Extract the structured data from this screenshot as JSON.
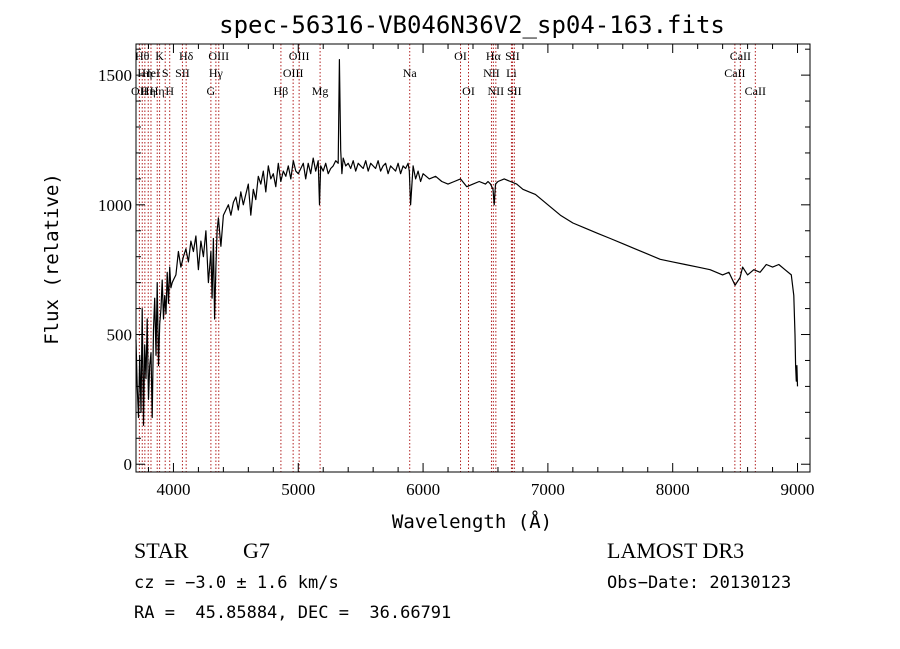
{
  "chart_data": {
    "type": "line",
    "title": "spec-56316-VB046N36V2_sp04-163.fits",
    "xlabel": "Wavelength (Å)",
    "ylabel": "Flux (relative)",
    "xlim": [
      3700,
      9100
    ],
    "ylim": [
      -30,
      1620
    ],
    "xticks": [
      4000,
      5000,
      6000,
      7000,
      8000,
      9000
    ],
    "yticks": [
      0,
      500,
      1000,
      1500
    ],
    "xtick_labels": [
      "4000",
      "5000",
      "6000",
      "7000",
      "8000",
      "9000"
    ],
    "ytick_labels": [
      "0",
      "500",
      "1000",
      "1500"
    ],
    "series": [
      {
        "name": "flux",
        "x": [
          3700,
          3710,
          3720,
          3730,
          3740,
          3750,
          3760,
          3770,
          3780,
          3790,
          3800,
          3810,
          3820,
          3830,
          3840,
          3850,
          3860,
          3870,
          3880,
          3890,
          3900,
          3910,
          3920,
          3930,
          3940,
          3950,
          3960,
          3970,
          3980,
          3990,
          4000,
          4020,
          4040,
          4060,
          4080,
          4100,
          4120,
          4140,
          4160,
          4180,
          4200,
          4220,
          4240,
          4260,
          4280,
          4300,
          4310,
          4320,
          4330,
          4340,
          4350,
          4360,
          4380,
          4400,
          4420,
          4440,
          4460,
          4480,
          4500,
          4520,
          4540,
          4560,
          4580,
          4600,
          4620,
          4640,
          4660,
          4680,
          4700,
          4720,
          4740,
          4760,
          4780,
          4800,
          4820,
          4840,
          4860,
          4880,
          4900,
          4920,
          4940,
          4960,
          4980,
          5000,
          5020,
          5040,
          5060,
          5080,
          5100,
          5120,
          5140,
          5160,
          5170,
          5180,
          5200,
          5220,
          5240,
          5260,
          5280,
          5300,
          5320,
          5330,
          5340,
          5350,
          5360,
          5380,
          5400,
          5420,
          5440,
          5460,
          5480,
          5500,
          5520,
          5540,
          5560,
          5580,
          5600,
          5620,
          5640,
          5660,
          5680,
          5700,
          5720,
          5740,
          5760,
          5780,
          5800,
          5820,
          5840,
          5860,
          5880,
          5890,
          5900,
          5920,
          5940,
          5960,
          5980,
          6000,
          6050,
          6100,
          6150,
          6200,
          6250,
          6300,
          6350,
          6400,
          6450,
          6500,
          6520,
          6540,
          6560,
          6570,
          6580,
          6600,
          6650,
          6700,
          6750,
          6800,
          6850,
          6900,
          6950,
          7000,
          7100,
          7200,
          7300,
          7400,
          7500,
          7600,
          7700,
          7800,
          7900,
          8000,
          8100,
          8200,
          8300,
          8400,
          8450,
          8500,
          8540,
          8560,
          8600,
          8650,
          8700,
          8750,
          8800,
          8850,
          8900,
          8950,
          8970,
          8980,
          8985,
          8990,
          8995,
          9000
        ],
        "y": [
          480,
          300,
          180,
          420,
          200,
          600,
          150,
          460,
          330,
          560,
          250,
          380,
          430,
          180,
          520,
          640,
          420,
          700,
          380,
          540,
          600,
          710,
          560,
          650,
          580,
          740,
          620,
          760,
          680,
          700,
          710,
          730,
          820,
          760,
          800,
          830,
          780,
          860,
          820,
          880,
          750,
          860,
          800,
          900,
          700,
          820,
          640,
          870,
          560,
          760,
          900,
          950,
          840,
          960,
          980,
          1000,
          960,
          1010,
          1030,
          980,
          1050,
          1000,
          1040,
          1080,
          960,
          1060,
          1020,
          1110,
          1080,
          1130,
          1050,
          1150,
          1100,
          1120,
          1070,
          1160,
          1090,
          1130,
          1110,
          1150,
          1100,
          1170,
          1130,
          1120,
          1140,
          1160,
          1100,
          1160,
          1120,
          1180,
          1130,
          1170,
          1000,
          1150,
          1130,
          1160,
          1120,
          1140,
          1150,
          1170,
          1160,
          1560,
          1210,
          1120,
          1180,
          1150,
          1160,
          1140,
          1170,
          1130,
          1160,
          1150,
          1140,
          1170,
          1130,
          1160,
          1150,
          1140,
          1170,
          1130,
          1150,
          1160,
          1120,
          1150,
          1140,
          1130,
          1160,
          1120,
          1150,
          1140,
          1160,
          1130,
          1000,
          1150,
          1100,
          1130,
          1090,
          1120,
          1100,
          1110,
          1090,
          1080,
          1090,
          1100,
          1070,
          1080,
          1090,
          1080,
          1090,
          1080,
          1060,
          1000,
          1080,
          1090,
          1100,
          1090,
          1080,
          1060,
          1050,
          1040,
          1020,
          1000,
          960,
          930,
          910,
          890,
          870,
          850,
          830,
          810,
          790,
          780,
          770,
          760,
          750,
          730,
          740,
          690,
          720,
          760,
          730,
          750,
          740,
          770,
          760,
          770,
          750,
          730,
          650,
          500,
          380,
          320,
          380,
          300
        ],
        "color": "#000000"
      }
    ],
    "spectral_lines": [
      {
        "wl": 3727,
        "label": "OII",
        "row": 3
      },
      {
        "wl": 3750,
        "label": "Hθ",
        "row": 1
      },
      {
        "wl": 3771,
        "label": "Hη",
        "row": 2
      },
      {
        "wl": 3798,
        "label": "Hη",
        "row": 3
      },
      {
        "wl": 3820,
        "label": "HeI",
        "row": 2
      },
      {
        "wl": 3870,
        "label": "Hη",
        "row": 3
      },
      {
        "wl": 3889,
        "label": "K",
        "row": 1
      },
      {
        "wl": 3934,
        "label": "S",
        "row": 2
      },
      {
        "wl": 3970,
        "label": "H",
        "row": 3
      },
      {
        "wl": 4072,
        "label": "SII",
        "row": 2
      },
      {
        "wl": 4102,
        "label": "Hδ",
        "row": 1
      },
      {
        "wl": 4300,
        "label": "G",
        "row": 3
      },
      {
        "wl": 4340,
        "label": "Hγ",
        "row": 2
      },
      {
        "wl": 4363,
        "label": "OIII",
        "row": 1
      },
      {
        "wl": 4861,
        "label": "Hβ",
        "row": 3
      },
      {
        "wl": 4959,
        "label": "OIII",
        "row": 2
      },
      {
        "wl": 5007,
        "label": "OIII",
        "row": 1
      },
      {
        "wl": 5175,
        "label": "Mg",
        "row": 3
      },
      {
        "wl": 5893,
        "label": "Na",
        "row": 2
      },
      {
        "wl": 6300,
        "label": "OI",
        "row": 1
      },
      {
        "wl": 6364,
        "label": "OI",
        "row": 3
      },
      {
        "wl": 6548,
        "label": "NII",
        "row": 2
      },
      {
        "wl": 6563,
        "label": "Hα",
        "row": 1
      },
      {
        "wl": 6583,
        "label": "NII",
        "row": 3
      },
      {
        "wl": 6708,
        "label": "Li",
        "row": 2
      },
      {
        "wl": 6716,
        "label": "SII",
        "row": 1
      },
      {
        "wl": 6731,
        "label": "SII",
        "row": 3
      },
      {
        "wl": 8498,
        "label": "CaII",
        "row": 2
      },
      {
        "wl": 8542,
        "label": "CaII",
        "row": 1
      },
      {
        "wl": 8662,
        "label": "CaII",
        "row": 3
      }
    ]
  },
  "info": {
    "object_type": "STAR",
    "subclass": "G7",
    "cz": "cz = −3.0 ± 1.6 km/s",
    "coords": "RA =  45.85884, DEC =  36.66791",
    "survey": "LAMOST DR3",
    "obs_date": "Obs−Date: 20130123"
  },
  "colors": {
    "line_marker": "#b22222",
    "spectrum": "#000000",
    "axes": "#000000"
  }
}
